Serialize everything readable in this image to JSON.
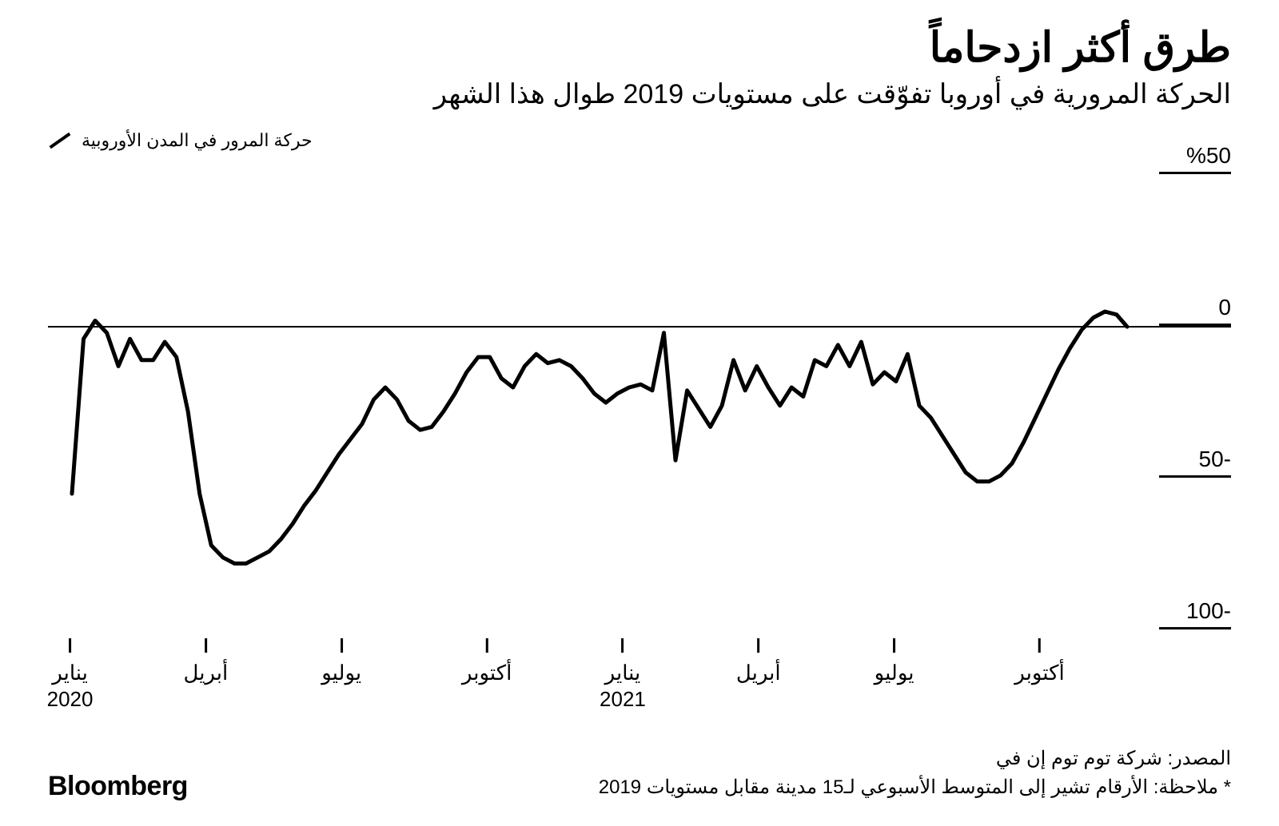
{
  "title": "طرق أكثر ازدحاماً",
  "subtitle": "الحركة المرورية في أوروبا تفوّقت على مستويات 2019 طوال هذا الشهر",
  "legend": {
    "label": "حركة المرور في المدن الأوروبية"
  },
  "source": "المصدر: شركة توم توم إن في",
  "note": "* ملاحظة: الأرقام تشير إلى المتوسط الأسبوعي لـ15 مدينة مقابل مستويات 2019",
  "brand": "Bloomberg",
  "chart": {
    "type": "line",
    "background_color": "#ffffff",
    "line_color": "#000000",
    "line_width": 5,
    "zero_line_color": "#000000",
    "zero_line_width": 2,
    "ylim": [
      -100,
      50
    ],
    "y_ticks": [
      {
        "value": 50,
        "label": "%50"
      },
      {
        "value": 0,
        "label": "0"
      },
      {
        "value": -50,
        "label": "-50"
      },
      {
        "value": -100,
        "label": "-100"
      }
    ],
    "y_label_fontsize": 28,
    "x_ticks": [
      {
        "t": 0.0,
        "label": "يناير",
        "year": "2020"
      },
      {
        "t": 0.14,
        "label": "أبريل",
        "year": ""
      },
      {
        "t": 0.28,
        "label": "يوليو",
        "year": ""
      },
      {
        "t": 0.43,
        "label": "أكتوبر",
        "year": ""
      },
      {
        "t": 0.57,
        "label": "يناير",
        "year": "2021"
      },
      {
        "t": 0.71,
        "label": "أبريل",
        "year": ""
      },
      {
        "t": 0.85,
        "label": "يوليو",
        "year": ""
      },
      {
        "t": 1.0,
        "label": "أكتوبر",
        "year": ""
      }
    ],
    "x_label_fontsize": 26,
    "series": {
      "t": [
        0.0,
        0.011,
        0.022,
        0.033,
        0.044,
        0.055,
        0.066,
        0.077,
        0.088,
        0.099,
        0.11,
        0.121,
        0.132,
        0.143,
        0.154,
        0.165,
        0.176,
        0.187,
        0.198,
        0.209,
        0.22,
        0.231,
        0.242,
        0.253,
        0.264,
        0.275,
        0.286,
        0.297,
        0.308,
        0.319,
        0.33,
        0.341,
        0.352,
        0.363,
        0.374,
        0.385,
        0.396,
        0.407,
        0.418,
        0.429,
        0.44,
        0.451,
        0.462,
        0.473,
        0.484,
        0.495,
        0.506,
        0.517,
        0.528,
        0.539,
        0.55,
        0.561,
        0.572,
        0.583,
        0.594,
        0.605,
        0.616,
        0.627,
        0.638,
        0.649,
        0.66,
        0.671,
        0.682,
        0.693,
        0.704,
        0.715,
        0.726,
        0.737,
        0.748,
        0.759,
        0.77,
        0.781,
        0.792,
        0.803,
        0.814,
        0.825,
        0.836,
        0.847,
        0.858,
        0.869,
        0.88,
        0.891,
        0.902,
        0.913,
        0.924,
        0.935,
        0.946,
        0.957,
        0.968,
        0.979,
        0.99,
        1.0
      ],
      "v": [
        -55,
        -4,
        2,
        -2,
        -13,
        -4,
        -11,
        -11,
        -5,
        -10,
        -28,
        -55,
        -72,
        -76,
        -78,
        -78,
        -76,
        -74,
        -70,
        -65,
        -59,
        -54,
        -48,
        -42,
        -37,
        -32,
        -24,
        -20,
        -24,
        -31,
        -34,
        -33,
        -28,
        -22,
        -15,
        -10,
        -10,
        -17,
        -20,
        -13,
        -9,
        -12,
        -11,
        -13,
        -17,
        -22,
        -25,
        -22,
        -20,
        -19,
        -21,
        -2,
        -44,
        -21,
        -27,
        -33,
        -26,
        -11,
        -21,
        -13,
        -20,
        -26,
        -20,
        -23,
        -11,
        -13,
        -6,
        -13,
        -5,
        -19,
        -15,
        -18,
        -9,
        -26,
        -30,
        -36,
        -42,
        -48,
        -51,
        -51,
        -49,
        -45,
        -38,
        -30,
        -22,
        -14,
        -7,
        -1,
        3,
        5,
        4,
        0
      ]
    }
  }
}
